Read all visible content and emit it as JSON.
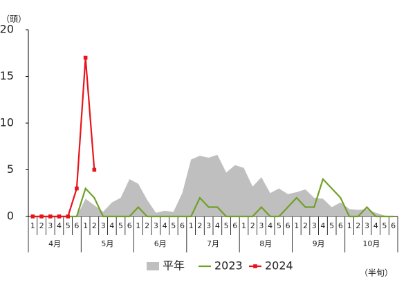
{
  "chart_data": {
    "type": "line",
    "y_label": "（頭）",
    "x_label": "（半旬）",
    "categories": [
      "1",
      "2",
      "3",
      "4",
      "5",
      "6",
      "1",
      "2",
      "3",
      "4",
      "5",
      "6",
      "1",
      "2",
      "3",
      "4",
      "5",
      "6",
      "1",
      "2",
      "3",
      "4",
      "5",
      "6",
      "1",
      "2",
      "3",
      "4",
      "5",
      "6",
      "1",
      "2",
      "3",
      "4",
      "5",
      "6",
      "1",
      "2",
      "3",
      "4",
      "5",
      "6"
    ],
    "months": [
      "4月",
      "5月",
      "6月",
      "7月",
      "8月",
      "9月",
      "10月"
    ],
    "ylim": [
      0,
      20
    ],
    "yticks": [
      0,
      5,
      10,
      15,
      20
    ],
    "series": [
      {
        "name": "平年",
        "color": "#bfbfbf",
        "style": "area",
        "values": [
          0,
          0,
          0,
          0,
          0,
          0,
          1.9,
          1.2,
          0.5,
          1.5,
          2.0,
          4.0,
          3.5,
          1.8,
          0.4,
          0.6,
          0.5,
          2.5,
          6.1,
          6.5,
          6.3,
          6.6,
          4.7,
          5.5,
          5.2,
          3.2,
          4.2,
          2.5,
          3.0,
          2.4,
          2.6,
          2.9,
          2.0,
          1.9,
          1.0,
          1.5,
          0.8,
          0.7,
          0.8,
          0.4,
          0.1,
          0
        ]
      },
      {
        "name": "2023",
        "color": "#70a026",
        "style": "line",
        "values": [
          0,
          0,
          0,
          0,
          0,
          0,
          3,
          2,
          0,
          0,
          0,
          0,
          1,
          0,
          0,
          0,
          0,
          0,
          0,
          2,
          1,
          1,
          0,
          0,
          0,
          0,
          1,
          0,
          0,
          1,
          2,
          1,
          1,
          4,
          3,
          2,
          0,
          0,
          1,
          0,
          0,
          0
        ]
      },
      {
        "name": "2024",
        "color": "#e8141b",
        "style": "line",
        "marker": "square",
        "values": [
          0,
          0,
          0,
          0,
          0,
          3,
          17,
          5,
          null,
          null,
          null,
          null,
          null,
          null,
          null,
          null,
          null,
          null,
          null,
          null,
          null,
          null,
          null,
          null,
          null,
          null,
          null,
          null,
          null,
          null,
          null,
          null,
          null,
          null,
          null,
          null,
          null,
          null,
          null,
          null,
          null,
          null
        ]
      }
    ]
  }
}
